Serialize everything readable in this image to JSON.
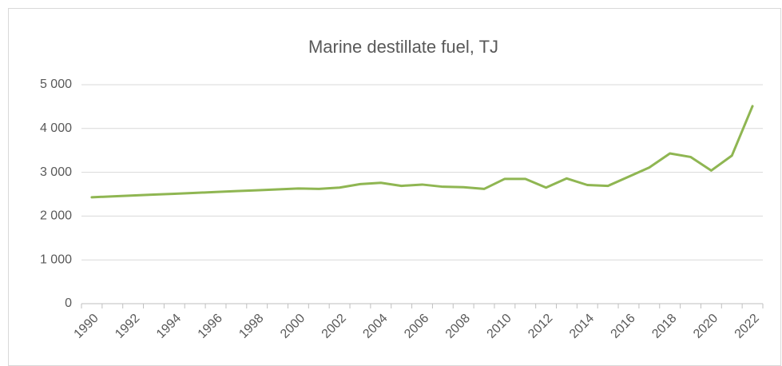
{
  "chart_data": {
    "type": "line",
    "title": "Marine destillate fuel, TJ",
    "categories": [
      "1990",
      null,
      "1992",
      null,
      "1994",
      null,
      "1996",
      null,
      "1998",
      null,
      "2000",
      null,
      "2002",
      null,
      "2004",
      null,
      "2006",
      null,
      "2008",
      null,
      "2010",
      null,
      "2012",
      null,
      "2014",
      null,
      "2016",
      null,
      "2018",
      null,
      "2020",
      null,
      "2022"
    ],
    "values": [
      2430,
      2450,
      2470,
      2490,
      2510,
      2530,
      2550,
      2570,
      2590,
      2610,
      2630,
      2620,
      2650,
      2730,
      2760,
      2690,
      2720,
      2670,
      2660,
      2620,
      2850,
      2850,
      2650,
      2860,
      2710,
      2690,
      2900,
      3110,
      3430,
      3350,
      3040,
      3380,
      4510
    ],
    "color": "#8fb652",
    "ylim": [
      0,
      5000
    ],
    "yticks": [
      0,
      {
        "value": 1000,
        "label": "1 000"
      },
      {
        "value": 2000,
        "label": "2 000"
      },
      {
        "value": 3000,
        "label": "3 000"
      },
      {
        "value": 4000,
        "label": "4 000"
      },
      {
        "value": 5000,
        "label": "5 000"
      }
    ],
    "grid": true
  }
}
